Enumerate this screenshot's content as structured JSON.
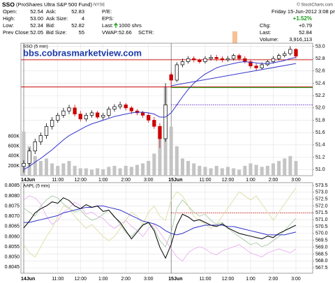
{
  "header": {
    "symbol": "SSO",
    "name": "(ProShares Ultra S&P 500 Fund)",
    "exchange": "NYSE",
    "source": "© StockCharts.com",
    "quote": [
      [
        {
          "label": "Open:",
          "value": "52.54"
        },
        {
          "label": "High:",
          "value": "53.00"
        },
        {
          "label": "Low:",
          "value": "52.34"
        },
        {
          "label": "Prev Close:",
          "value": "52.05"
        }
      ],
      [
        {
          "label": "Ask:",
          "value": "52.83"
        },
        {
          "label": "Ask Size:",
          "value": "4"
        },
        {
          "label": "Bid:",
          "value": "52.82"
        },
        {
          "label": "Bid Size:",
          "value": "55"
        }
      ],
      [
        {
          "label": "P/E:"
        },
        {
          "label": "EPS:"
        },
        {
          "label": "Last:",
          "value": "1000 shrs"
        },
        {
          "label": "VWAP:",
          "value": "52.66"
        }
      ]
    ],
    "sctr": "SCTR:",
    "date": "Friday 15-Jun-2012 3:08 pm",
    "change_pct": "+1.52%",
    "stats": [
      {
        "label": "Chg:",
        "value": "+0.79"
      },
      {
        "label": "Last:",
        "value": "52.84"
      },
      {
        "label": "Volume:",
        "value": "3,916,113"
      }
    ]
  },
  "chart_data": [
    {
      "type": "candlestick",
      "title": "SSO (5 min)",
      "annotation": "bbs.cobrasmarketview.com",
      "categories": [
        "14Jun",
        null,
        null,
        null,
        null,
        null,
        "11:00",
        null,
        null,
        null,
        "12:00",
        null,
        null,
        null,
        "1:00",
        null,
        null,
        null,
        "2:00",
        null,
        null,
        null,
        "3:00",
        null,
        null,
        null,
        "15Jun",
        null,
        null,
        null,
        null,
        null,
        "11:00",
        null,
        null,
        null,
        "12:00",
        null,
        null,
        null,
        "1:00",
        null,
        null,
        null,
        "2:00",
        null,
        null,
        null,
        "3:00"
      ],
      "open": [
        51.05,
        51.1,
        51.3,
        51.45,
        51.55,
        51.7,
        51.8,
        51.88,
        51.95,
        52.0,
        51.9,
        51.82,
        51.88,
        51.92,
        51.85,
        51.88,
        51.98,
        52.02,
        52.05,
        52.0,
        51.95,
        51.92,
        51.88,
        51.8,
        51.7,
        51.5,
        52.54,
        52.45,
        52.7,
        52.75,
        52.8,
        52.78,
        52.75,
        52.8,
        52.82,
        52.8,
        52.78,
        52.8,
        52.85,
        52.8,
        52.75,
        52.68,
        52.65,
        52.7,
        52.75,
        52.8,
        52.85,
        52.88,
        52.95
      ],
      "high": [
        51.15,
        51.35,
        51.5,
        51.6,
        51.75,
        51.85,
        51.92,
        52.0,
        52.05,
        52.05,
        51.95,
        51.92,
        51.96,
        51.95,
        51.92,
        52.02,
        52.06,
        52.1,
        52.08,
        52.03,
        51.98,
        51.95,
        51.92,
        51.85,
        51.75,
        52.4,
        52.58,
        52.74,
        52.8,
        52.84,
        52.84,
        52.8,
        52.84,
        52.86,
        52.86,
        52.84,
        52.84,
        52.88,
        52.88,
        52.84,
        52.78,
        52.72,
        52.74,
        52.78,
        52.84,
        52.88,
        52.92,
        53.0,
        52.97
      ],
      "low": [
        50.95,
        51.05,
        51.25,
        51.4,
        51.5,
        51.65,
        51.76,
        51.84,
        51.9,
        51.86,
        51.78,
        51.78,
        51.84,
        51.82,
        51.8,
        51.84,
        51.94,
        51.98,
        51.96,
        51.9,
        51.88,
        51.84,
        51.76,
        51.66,
        51.35,
        51.45,
        52.34,
        52.42,
        52.66,
        52.72,
        52.74,
        52.72,
        52.72,
        52.77,
        52.76,
        52.74,
        52.75,
        52.77,
        52.77,
        52.72,
        52.64,
        52.6,
        52.62,
        52.68,
        52.72,
        52.77,
        52.82,
        52.85,
        52.8
      ],
      "close": [
        51.1,
        51.3,
        51.45,
        51.55,
        51.7,
        51.8,
        51.88,
        51.95,
        52.0,
        51.9,
        51.82,
        51.88,
        51.92,
        51.85,
        51.88,
        51.98,
        52.02,
        52.05,
        52.0,
        51.95,
        51.92,
        51.88,
        51.8,
        51.7,
        51.5,
        52.05,
        52.45,
        52.7,
        52.75,
        52.8,
        52.78,
        52.75,
        52.8,
        52.82,
        52.8,
        52.78,
        52.8,
        52.85,
        52.8,
        52.75,
        52.68,
        52.65,
        52.7,
        52.75,
        52.8,
        52.85,
        52.88,
        52.95,
        52.84
      ],
      "up_color": "#000000",
      "down_color": "#cc0000",
      "series": [
        {
          "color": "#3333cc",
          "values": [
            51.0,
            51.05,
            51.12,
            51.18,
            51.25,
            51.32,
            51.4,
            51.48,
            51.55,
            51.6,
            51.65,
            51.7,
            51.74,
            51.77,
            51.8,
            51.83,
            51.86,
            51.88,
            51.9,
            51.92,
            51.93,
            51.93,
            51.92,
            51.9,
            51.85,
            51.85,
            51.92,
            52.05,
            52.18,
            52.3,
            52.4,
            52.48,
            52.55,
            52.6,
            52.65,
            52.68,
            52.7,
            52.72,
            52.74,
            52.75,
            52.74,
            52.73,
            52.72,
            52.72,
            52.73,
            52.75,
            52.77,
            52.8,
            52.82
          ]
        }
      ],
      "volume": {
        "color": "#c4c4c4",
        "axis": "y2",
        "values": [
          900000,
          600000,
          400000,
          300000,
          350000,
          250000,
          200000,
          250000,
          300000,
          200000,
          150000,
          150000,
          120000,
          150000,
          130000,
          180000,
          200000,
          150000,
          200000,
          180000,
          220000,
          250000,
          300000,
          450000,
          900000,
          1800000,
          1000000,
          600000,
          350000,
          300000,
          250000,
          200000,
          180000,
          150000,
          200000,
          150000,
          180000,
          150000,
          120000,
          200000,
          250000,
          220000,
          180000,
          200000,
          250000,
          300000,
          350000,
          400000,
          300000
        ]
      },
      "reference_lines": [
        {
          "value": 52.78,
          "color": "#cc0000",
          "style": "solid",
          "extent": "all"
        },
        {
          "value": 52.34,
          "color": "#cc0000",
          "style": "solid",
          "extent": "all"
        },
        {
          "value": 52.33,
          "color": "#009900",
          "style": "solid",
          "extent": "last-session"
        },
        {
          "value": 52.05,
          "color": "#6633cc",
          "style": "dotted",
          "extent": "last-session"
        }
      ],
      "trendline": {
        "color": "#3333cc",
        "values": [
          52.36,
          52.72
        ]
      },
      "ylim": [
        50.9,
        53.05
      ],
      "yticks": [
        {
          "value": 51,
          "label": "51.0"
        },
        51.2,
        51.4,
        51.6,
        51.8,
        {
          "value": 52,
          "label": "52.0"
        },
        52.2,
        52.4,
        52.6,
        52.8,
        {
          "value": 53,
          "label": "53.0"
        }
      ],
      "y_side": "right",
      "y2lim": [
        0,
        2700000
      ],
      "y2ticks": [
        {
          "value": 200000,
          "label": "200K"
        },
        {
          "value": 400000,
          "label": "400K"
        },
        {
          "value": 600000,
          "label": "600K"
        },
        {
          "value": 800000,
          "label": "800K"
        }
      ],
      "y2_side": "left",
      "grid": true
    },
    {
      "type": "line",
      "title": "AAPL (5 min)",
      "categories": [
        "14Jun",
        null,
        null,
        null,
        null,
        null,
        "11:00",
        null,
        null,
        null,
        "12:00",
        null,
        null,
        null,
        "1:00",
        null,
        null,
        null,
        "2:00",
        null,
        null,
        null,
        "3:00",
        null,
        null,
        null,
        "15Jun",
        null,
        null,
        null,
        null,
        null,
        "11:00",
        null,
        null,
        null,
        "12:00",
        null,
        null,
        null,
        "1:00",
        null,
        null,
        null,
        "2:00",
        null,
        null,
        null,
        "3:00"
      ],
      "series": [
        {
          "color": "#9cc49c",
          "axis": "y2",
          "values": [
            0.8074,
            0.8072,
            0.807,
            0.8075,
            0.8078,
            0.808,
            0.8079,
            0.8076,
            0.8074,
            0.8072,
            0.8073,
            0.807,
            0.8068,
            0.8069,
            0.8071,
            0.8073,
            0.807,
            0.8066,
            0.8062,
            0.806,
            0.8063,
            0.8066,
            0.8067,
            0.8064,
            0.8058,
            0.8055,
            0.8062,
            0.8074,
            0.8078,
            0.8075,
            0.8072,
            0.807,
            0.8071,
            0.8068,
            0.8066,
            0.8067,
            0.8064,
            0.8062,
            0.806,
            0.8058,
            0.8056,
            0.8057,
            0.8055,
            0.8056,
            0.8058,
            0.806,
            0.8063,
            0.8066,
            0.8069
          ]
        },
        {
          "color": "#e6a6ee",
          "axis": "y2",
          "values": [
            0.8078,
            0.808,
            0.8079,
            0.8076,
            0.807,
            0.8066,
            0.8068,
            0.8072,
            0.8074,
            0.8077,
            0.8075,
            0.8071,
            0.8072,
            0.807,
            0.8069,
            0.8066,
            0.8064,
            0.8066,
            0.8068,
            0.8065,
            0.8063,
            0.806,
            0.8064,
            0.8066,
            0.8062,
            0.8058,
            0.8054,
            0.805,
            0.8048,
            0.8052,
            0.8054,
            0.8055,
            0.8054,
            0.8052,
            0.8051,
            0.8053,
            0.8054,
            0.8055,
            0.8056,
            0.8054,
            0.8052,
            0.8051,
            0.805,
            0.8052,
            0.8053,
            0.8054,
            0.8053,
            0.8052,
            0.8054
          ]
        },
        {
          "color": "#d9d99a",
          "axis": "y2",
          "values": [
            0.8056,
            0.8052,
            0.805,
            0.8055,
            0.806,
            0.8064,
            0.807,
            0.8075,
            0.8074,
            0.807,
            0.8067,
            0.8064,
            0.8066,
            0.8063,
            0.806,
            0.8058,
            0.806,
            0.8064,
            0.8068,
            0.8072,
            0.807,
            0.8066,
            0.8072,
            0.8075,
            0.807,
            0.8068,
            0.8078,
            0.8082,
            0.808,
            0.8075,
            0.807,
            0.8068,
            0.8066,
            0.8064,
            0.8066,
            0.807,
            0.8074,
            0.8078,
            0.8082,
            0.808,
            0.8078,
            0.808,
            0.8076,
            0.8072,
            0.8068,
            0.8072,
            0.8076,
            0.808,
            0.8084
          ]
        },
        {
          "color": "#3333cc",
          "values": [
            570.8,
            570.8,
            570.9,
            571.0,
            571.1,
            571.2,
            571.3,
            571.5,
            571.6,
            571.7,
            571.8,
            571.9,
            571.9,
            572.0,
            572.0,
            571.9,
            571.8,
            571.7,
            571.5,
            571.3,
            571.1,
            570.9,
            570.8,
            570.7,
            570.5,
            570.2,
            570.0,
            569.9,
            570.0,
            570.2,
            570.4,
            570.5,
            570.6,
            570.6,
            570.6,
            570.6,
            570.5,
            570.5,
            570.4,
            570.3,
            570.2,
            570.1,
            570.0,
            569.9,
            569.9,
            569.9,
            569.9,
            570.0,
            570.1
          ]
        },
        {
          "color": "#000000",
          "values": [
            570.4,
            570.9,
            571.5,
            571.8,
            572.0,
            572.3,
            572.2,
            572.6,
            572.4,
            572.0,
            571.8,
            572.1,
            571.9,
            572.0,
            571.6,
            571.7,
            571.2,
            570.8,
            570.2,
            569.6,
            570.1,
            570.6,
            570.8,
            570.2,
            569.0,
            568.2,
            569.2,
            570.6,
            571.4,
            571.2,
            570.9,
            571.0,
            570.8,
            570.6,
            570.5,
            570.7,
            570.4,
            570.2,
            570.0,
            569.9,
            569.8,
            569.7,
            569.6,
            569.8,
            569.7,
            570.0,
            570.2,
            570.4,
            570.6
          ]
        }
      ],
      "reference_lines": [
        {
          "value": 571.5,
          "color": "#cc0000",
          "style": "dotted",
          "extent": "last-session"
        }
      ],
      "ylim": [
        567.1,
        573.7
      ],
      "yticks": [
        567.5,
        {
          "value": 568,
          "label": "568.0"
        },
        568.5,
        {
          "value": 569,
          "label": "569.0"
        },
        569.5,
        {
          "value": 570,
          "label": "570.0"
        },
        570.5,
        {
          "value": 571,
          "label": "571.0"
        },
        571.5,
        {
          "value": 572,
          "label": "572.0"
        },
        572.5,
        {
          "value": 573,
          "label": "573.0"
        },
        573.5
      ],
      "y_side": "right",
      "y2lim": [
        0.8042,
        0.80865
      ],
      "y2ticks": [
        0.8045,
        {
          "value": 0.805,
          "label": "0.8050"
        },
        0.8055,
        {
          "value": 0.806,
          "label": "0.8060"
        },
        0.8065,
        {
          "value": 0.807,
          "label": "0.8070"
        },
        0.8075,
        {
          "value": 0.808,
          "label": "0.8080"
        },
        0.8085
      ],
      "y2_side": "left",
      "grid": true
    }
  ]
}
